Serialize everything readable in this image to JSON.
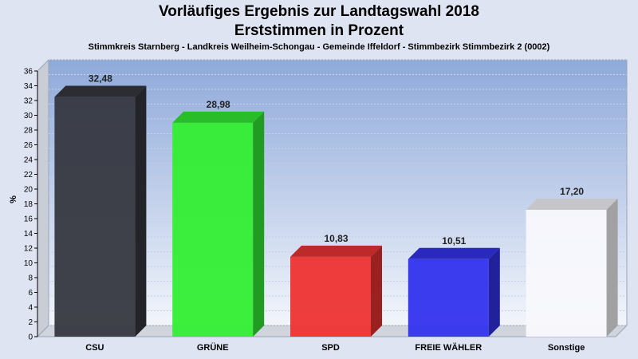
{
  "chart_data": {
    "type": "bar",
    "title": "Vorläufiges Ergebnis zur Landtagswahl 2018",
    "subtitle_main": "Erststimmen in Prozent",
    "subtitle": "Stimmkreis Starnberg - Landkreis Weilheim-Schongau - Gemeinde Iffeldorf - Stimmbezirk Stimmbezirk 2 (0002)",
    "ylabel": "%",
    "xlabel": "",
    "ylim": [
      0,
      36
    ],
    "yticks": [
      0,
      2,
      4,
      6,
      8,
      10,
      12,
      14,
      16,
      18,
      20,
      22,
      24,
      26,
      28,
      30,
      32,
      34,
      36
    ],
    "grid": true,
    "categories": [
      "CSU",
      "GRÜNE",
      "SPD",
      "FREIE WÄHLER",
      "Sonstige"
    ],
    "values": [
      32.48,
      28.98,
      10.83,
      10.51,
      17.2
    ],
    "value_labels": [
      "32,48",
      "28,98",
      "10,83",
      "10,51",
      "17,20"
    ],
    "colors": [
      "#363840",
      "#33ee33",
      "#ee3333",
      "#3333ee",
      "#f8f8fc"
    ]
  }
}
